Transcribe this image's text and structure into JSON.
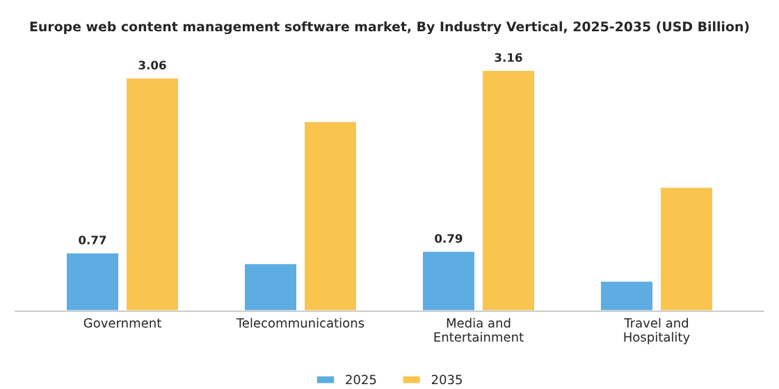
{
  "chart_data": {
    "type": "bar",
    "title": "Europe web content management software market, By Industry Vertical, 2025-2035 (USD Billion)",
    "categories": [
      "Government",
      "Telecommunications",
      "Media and\nEntertainment",
      "Travel and\nHospitality"
    ],
    "series": [
      {
        "name": "2025",
        "color": "#5dade2",
        "values": [
          0.77,
          0.63,
          0.79,
          0.4
        ],
        "value_labels": [
          "0.77",
          null,
          "0.79",
          null
        ]
      },
      {
        "name": "2035",
        "color": "#f9c54e",
        "values": [
          3.06,
          2.49,
          3.16,
          1.63
        ],
        "value_labels": [
          "3.06",
          null,
          "3.16",
          null
        ]
      }
    ],
    "legend": "bottom",
    "grid": false
  }
}
